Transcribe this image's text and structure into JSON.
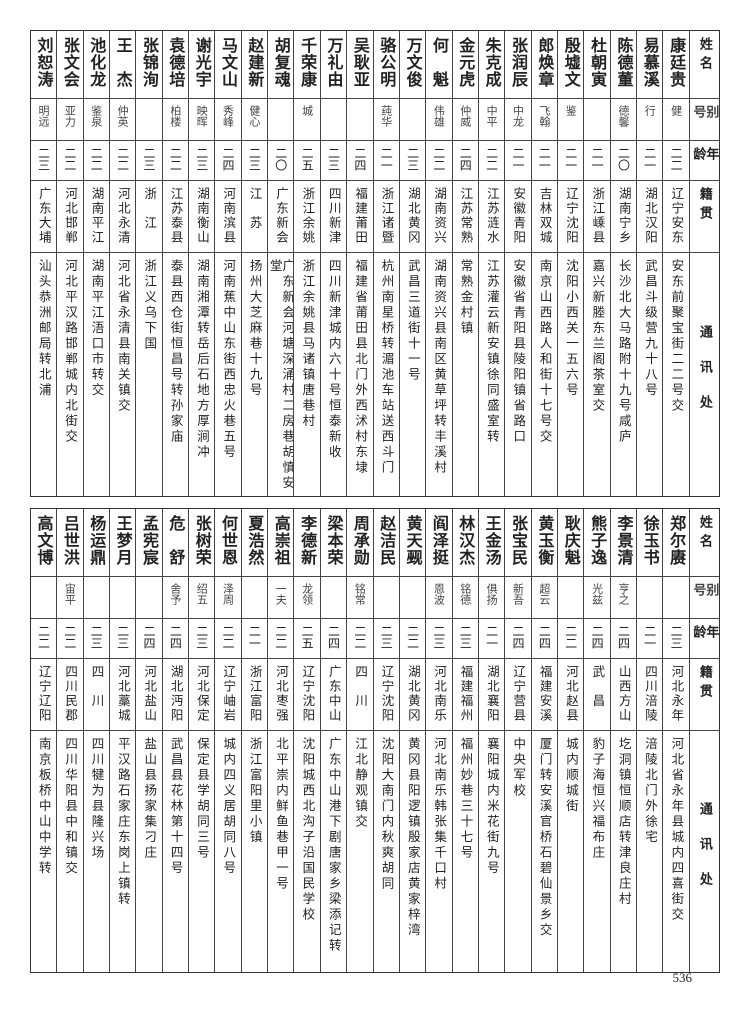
{
  "headers": {
    "name": "姓名",
    "alias": "别号",
    "age": "年龄",
    "origin": "籍贯",
    "address": "通讯处"
  },
  "tables": [
    {
      "rows": [
        {
          "name": "康廷贵",
          "alias": "健",
          "age": "二二",
          "origin": "辽宁安东",
          "address": "安东前聚宝街二二号交"
        },
        {
          "name": "易慕溪",
          "alias": "行",
          "age": "二一",
          "origin": "湖北汉阳",
          "address": "武昌斗级营九十八号"
        },
        {
          "name": "陈德董",
          "alias": "德馨",
          "age": "二〇",
          "origin": "湖南宁乡",
          "address": "长沙北大马路附十九号咸庐"
        },
        {
          "name": "杜朝寅",
          "alias": "",
          "age": "二一",
          "origin": "浙江嵊县",
          "address": "嘉兴新塍东兰阁茶室交"
        },
        {
          "name": "殷墟文",
          "alias": "鉴",
          "age": "二一",
          "origin": "辽宁沈阳",
          "address": "沈阳小西关一五六号"
        },
        {
          "name": "郎焕章",
          "alias": "飞翰",
          "age": "二一",
          "origin": "吉林双城",
          "address": "南京山西路人和街十七号交"
        },
        {
          "name": "张润辰",
          "alias": "中龙",
          "age": "二一",
          "origin": "安徽青阳",
          "address": "安徽省青阳县陵阳镇省路口"
        },
        {
          "name": "朱克成",
          "alias": "中平",
          "age": "二二",
          "origin": "江苏涟水",
          "address": "江苏灌云新安镇徐同盛室转"
        },
        {
          "name": "金元虎",
          "alias": "仲威",
          "age": "二四",
          "origin": "江苏常熟",
          "address": "常熟金村镇"
        },
        {
          "name": "何　魁",
          "alias": "伟雄",
          "age": "二二",
          "origin": "湖南资兴",
          "address": "湖南资兴县南区黄草坪转丰溪村"
        },
        {
          "name": "万文俊",
          "alias": "",
          "age": "二三",
          "origin": "湖北黄冈",
          "address": "武昌三道街十一号"
        },
        {
          "name": "骆公明",
          "alias": "莼华",
          "age": "二一",
          "origin": "浙江诸暨",
          "address": "杭州南星桥转湄池车站送西斗门"
        },
        {
          "name": "吴耿亚",
          "alias": "",
          "age": "二四",
          "origin": "福建莆田",
          "address": "福建省莆田县北门外西沭村东埭"
        },
        {
          "name": "万礼由",
          "alias": "",
          "age": "二三",
          "origin": "四川新津",
          "address": "四川新津城内六十号恒泰新收"
        },
        {
          "name": "千荣康",
          "alias": "城",
          "age": "二五",
          "origin": "浙江余姚",
          "address": "浙江余姚县马诸镇唐巷村"
        },
        {
          "name": "胡复魂",
          "alias": "",
          "age": "二〇",
          "origin": "广东新会",
          "address": "广东新会河塘深涌村二房巷胡慎安堂"
        },
        {
          "name": "赵建新",
          "alias": "健心",
          "age": "二三",
          "origin": "江　苏",
          "address": "扬州大芝麻巷十九号"
        },
        {
          "name": "马文山",
          "alias": "秀峰",
          "age": "二四",
          "origin": "河南滨县",
          "address": "河南蕉中山东街西忠火巷五号"
        },
        {
          "name": "谢光宇",
          "alias": "映晖",
          "age": "二三",
          "origin": "湖南衡山",
          "address": "湖南湘潭转岳后石地方厚涧冲"
        },
        {
          "name": "袁德培",
          "alias": "柏楼",
          "age": "二二",
          "origin": "江苏泰县",
          "address": "泰县西仓街恒昌号转孙家庙"
        },
        {
          "name": "张锦洵",
          "alias": "",
          "age": "二三",
          "origin": "浙　江",
          "address": "浙江义乌下国"
        },
        {
          "name": "王　杰",
          "alias": "仲英",
          "age": "二二",
          "origin": "河北永清",
          "address": "河北省永清县南关镇交"
        },
        {
          "name": "池化龙",
          "alias": "鉴泉",
          "age": "二二",
          "origin": "湖南平江",
          "address": "湖南平江浯口市转交"
        },
        {
          "name": "张文会",
          "alias": "亚力",
          "age": "二二",
          "origin": "河北邯郸",
          "address": "河北平汉路邯郸城内北街交"
        },
        {
          "name": "刘恕涛",
          "alias": "明远",
          "age": "二三",
          "origin": "广东大埔",
          "address": "汕头恭洲邮局转北浦"
        }
      ]
    },
    {
      "rows": [
        {
          "name": "郑尔赓",
          "alias": "",
          "age": "二三",
          "origin": "河北永年",
          "address": "河北省永年县城内四喜街交"
        },
        {
          "name": "徐玉书",
          "alias": "",
          "age": "二一",
          "origin": "四川涪陵",
          "address": "涪陵北门外徐宅"
        },
        {
          "name": "李景清",
          "alias": "亨之",
          "age": "二四",
          "origin": "山西方山",
          "address": "圪洞镇恒顺店转津良庄村"
        },
        {
          "name": "熊子逸",
          "alias": "光兹",
          "age": "二四",
          "origin": "武　昌",
          "address": "豹子海恒兴福布庄"
        },
        {
          "name": "耿庆魁",
          "alias": "",
          "age": "二二",
          "origin": "河北赵县",
          "address": "城内顺城街"
        },
        {
          "name": "黄玉衡",
          "alias": "超云",
          "age": "二四",
          "origin": "福建安溪",
          "address": "厦门转安溪官桥石碧仙景乡交"
        },
        {
          "name": "张宝民",
          "alias": "新吾",
          "age": "二四",
          "origin": "辽宁营县",
          "address": "中央军校"
        },
        {
          "name": "王金汤",
          "alias": "俱扬",
          "age": "二一",
          "origin": "湖北襄阳",
          "address": "襄阳城内米花街九号"
        },
        {
          "name": "林汉杰",
          "alias": "铭德",
          "age": "二三",
          "origin": "福建福州",
          "address": "福州妙巷三十七号"
        },
        {
          "name": "阎泽挺",
          "alias": "恩波",
          "age": "二三",
          "origin": "河北南乐",
          "address": "河北南乐韩张集千口村"
        },
        {
          "name": "黄天觋",
          "alias": "",
          "age": "二二",
          "origin": "湖北黄冈",
          "address": "黄冈县阳逻镇殷家店黄家梓湾"
        },
        {
          "name": "赵洁民",
          "alias": "",
          "age": "二三",
          "origin": "辽宁沈阳",
          "address": "沈阳大南门内秋爽胡同"
        },
        {
          "name": "周承勋",
          "alias": "铭常",
          "age": "二二",
          "origin": "四　川",
          "address": "江北静观镇交"
        },
        {
          "name": "梁本荣",
          "alias": "",
          "age": "二四",
          "origin": "广东中山",
          "address": "广东中山港下剧唐家乡梁添记转"
        },
        {
          "name": "李德新",
          "alias": "龙领",
          "age": "二五",
          "origin": "辽宁沈阳",
          "address": "沈阳城西北沟子沿国民学校"
        },
        {
          "name": "高崇祖",
          "alias": "一夫",
          "age": "二二",
          "origin": "河北枣强",
          "address": "北平崇内鲜鱼巷甲一号"
        },
        {
          "name": "夏浩然",
          "alias": "",
          "age": "二一",
          "origin": "浙江富阳",
          "address": "浙江富阳里小镇"
        },
        {
          "name": "何世恩",
          "alias": "泽周",
          "age": "二二",
          "origin": "辽宁岫岩",
          "address": "城内四义居胡同八号"
        },
        {
          "name": "张树荣",
          "alias": "绍五",
          "age": "二三",
          "origin": "河北保定",
          "address": "保定县学胡同三号"
        },
        {
          "name": "危　舒",
          "alias": "舍予",
          "age": "二四",
          "origin": "湖北沔阳",
          "address": "武昌县花林第十四号"
        },
        {
          "name": "孟宪宸",
          "alias": "",
          "age": "二四",
          "origin": "河北盐山",
          "address": "盐山县扬家集刁庄"
        },
        {
          "name": "王梦月",
          "alias": "",
          "age": "二三",
          "origin": "河北藁城",
          "address": "平汉路石家庄东岗上镇转"
        },
        {
          "name": "杨运鼎",
          "alias": "",
          "age": "二三",
          "origin": "四　川",
          "address": "四川犍为县隆兴场"
        },
        {
          "name": "吕世洪",
          "alias": "宙平",
          "age": "二二",
          "origin": "四川民郡",
          "address": "四川华阳县中和镇交"
        },
        {
          "name": "高文博",
          "alias": "",
          "age": "二二",
          "origin": "辽宁辽阳",
          "address": "南京板桥中山中学转"
        }
      ]
    }
  ],
  "page_number": "536"
}
